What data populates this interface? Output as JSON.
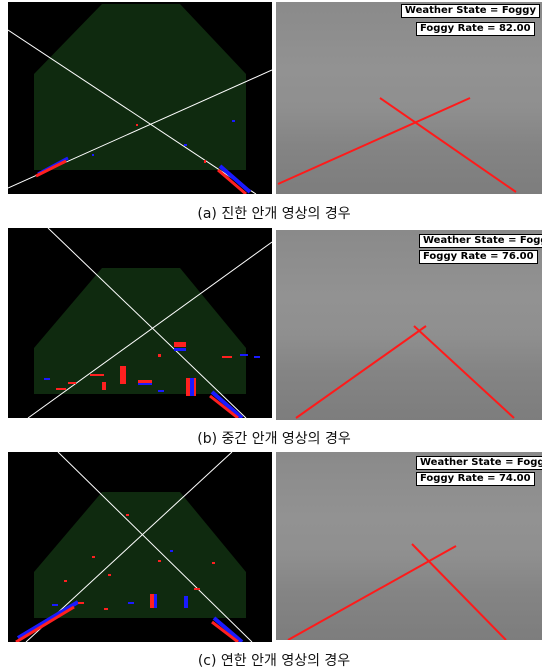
{
  "panels": [
    {
      "caption": "(a) 진한 안개 영상의 경우",
      "weather_state": "Weather State = Foggy",
      "foggy_rate": "Foggy Rate = 82.00",
      "fog_level": 82.0
    },
    {
      "caption": "(b) 중간 안개 영상의 경우",
      "weather_state": "Weather State = Foggy",
      "foggy_rate": "Foggy Rate = 76.00",
      "fog_level": 76.0
    },
    {
      "caption": "(c) 연한 안개 영상의 경우",
      "weather_state": "Weather State = Foggy",
      "foggy_rate": "Foggy Rate = 74.00",
      "fog_level": 74.0
    }
  ],
  "colors": {
    "roi": "#0f2a0f",
    "lane_line": "#ffffff",
    "detected_lane": "#ff1a1a",
    "edge_blue": "#1a1aff",
    "edge_red": "#ff2020"
  }
}
